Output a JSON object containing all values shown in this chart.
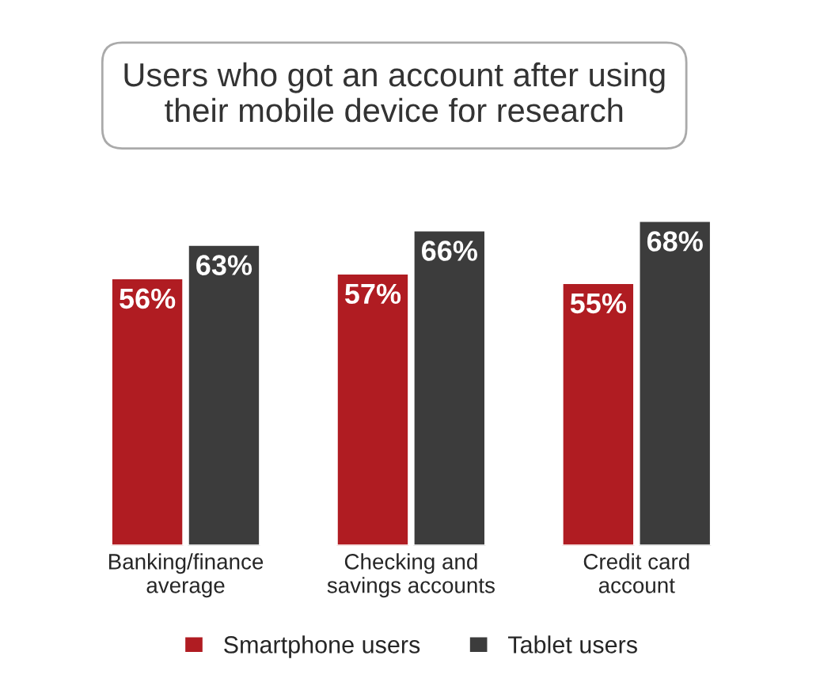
{
  "chart_data": {
    "type": "bar",
    "title": "Users who got an account after using\ntheir mobile device for research",
    "categories": [
      "Banking/finance\naverage",
      "Checking and\nsavings accounts",
      "Credit card\naccount"
    ],
    "series": [
      {
        "name": "Smartphone users",
        "color": "#b01c22",
        "values": [
          56,
          57,
          55
        ],
        "value_labels": [
          "56%",
          "57%",
          "55%"
        ]
      },
      {
        "name": "Tablet users",
        "color": "#3c3c3c",
        "values": [
          63,
          66,
          68
        ],
        "value_labels": [
          "63%",
          "66%",
          "68%"
        ]
      }
    ],
    "legend": "bottom",
    "grid": false,
    "tick_labels": "x"
  }
}
